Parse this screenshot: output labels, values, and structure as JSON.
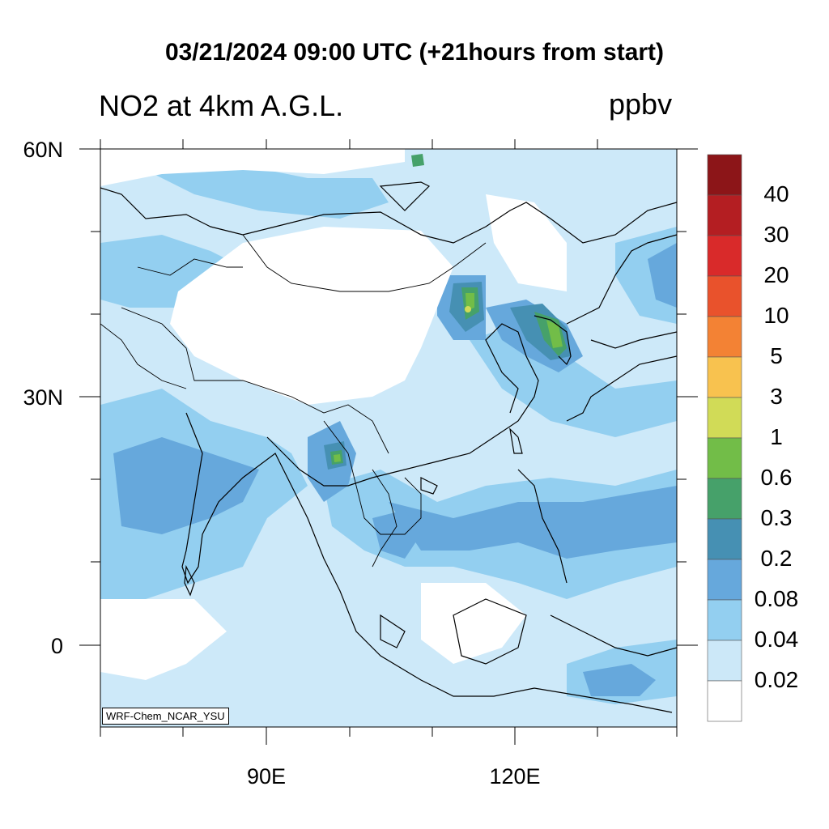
{
  "header": {
    "title": "03/21/2024 09:00 UTC (+21hours from start)",
    "variable": "NO2 at 4km A.G.L.",
    "units": "ppbv"
  },
  "axes": {
    "lat_labels": [
      "60N",
      "30N",
      "0"
    ],
    "lon_labels": [
      "90E",
      "120E"
    ]
  },
  "model_tag": "WRF-Chem_NCAR_YSU",
  "colorbar": {
    "labels": [
      "40",
      "30",
      "20",
      "10",
      "5",
      "3",
      "1",
      "0.6",
      "0.3",
      "0.2",
      "0.08",
      "0.04",
      "0.02"
    ],
    "colors": [
      "#8c1518",
      "#b41e22",
      "#d92a2a",
      "#e9522c",
      "#f38234",
      "#f8c24f",
      "#d1db57",
      "#72bd48",
      "#46a16a",
      "#4690b3",
      "#66a8dc",
      "#93cff0",
      "#cce8f8",
      "#ffffff"
    ]
  },
  "map": {
    "lat_range": [
      -10,
      60
    ],
    "lon_range": [
      70,
      140
    ],
    "background_color": "#cde9f9"
  }
}
